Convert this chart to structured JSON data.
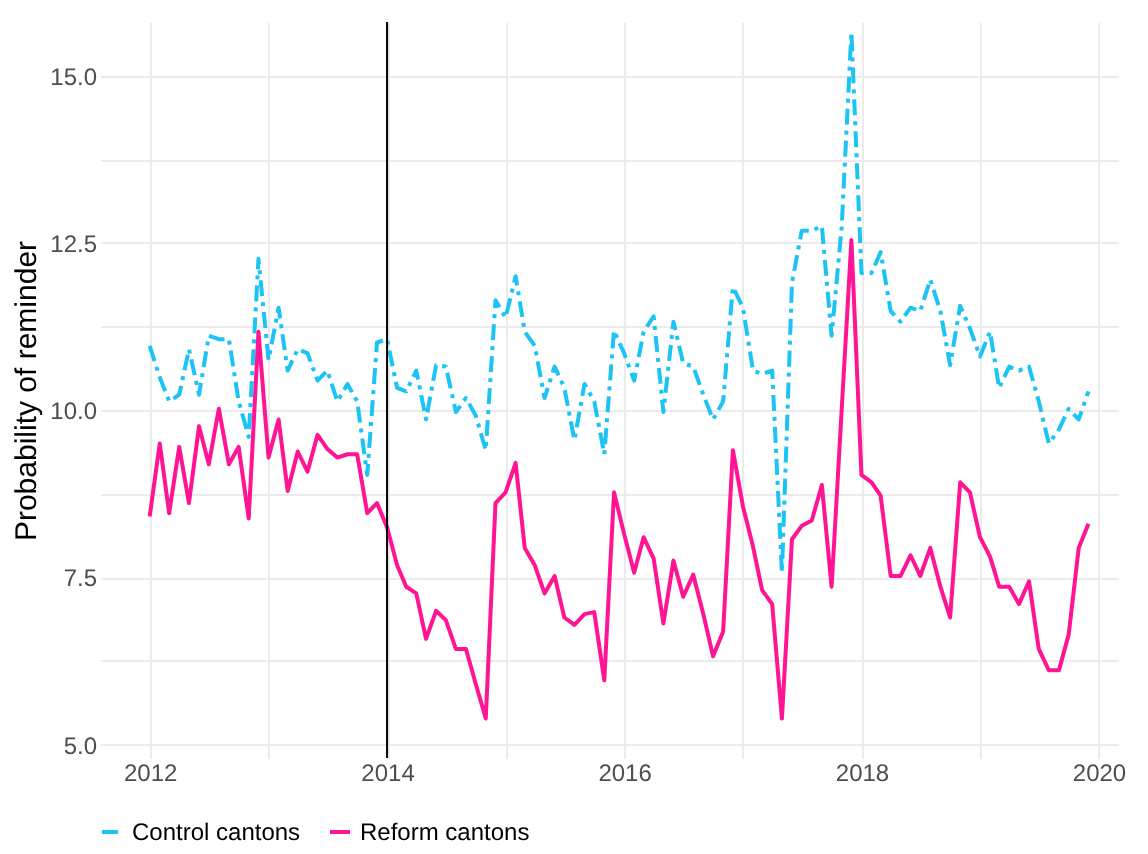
{
  "chart_data": {
    "type": "line",
    "ylabel": "Probability of reminder",
    "x": [
      "2012-01",
      "2012-02",
      "2012-03",
      "2012-04",
      "2012-05",
      "2012-06",
      "2012-07",
      "2012-08",
      "2012-09",
      "2012-10",
      "2012-11",
      "2012-12",
      "2013-01",
      "2013-02",
      "2013-03",
      "2013-04",
      "2013-05",
      "2013-06",
      "2013-07",
      "2013-08",
      "2013-09",
      "2013-10",
      "2013-11",
      "2013-12",
      "2014-01",
      "2014-02",
      "2014-03",
      "2014-04",
      "2014-05",
      "2014-06",
      "2014-07",
      "2014-08",
      "2014-09",
      "2014-10",
      "2014-11",
      "2014-12",
      "2015-01",
      "2015-02",
      "2015-03",
      "2015-04",
      "2015-05",
      "2015-06",
      "2015-07",
      "2015-08",
      "2015-09",
      "2015-10",
      "2015-11",
      "2015-12",
      "2016-01",
      "2016-02",
      "2016-03",
      "2016-04",
      "2016-05",
      "2016-06",
      "2016-07",
      "2016-08",
      "2016-09",
      "2016-10",
      "2016-11",
      "2016-12",
      "2017-01",
      "2017-02",
      "2017-03",
      "2017-04",
      "2017-05",
      "2017-06",
      "2017-07",
      "2017-08",
      "2017-09",
      "2017-10",
      "2017-11",
      "2017-12",
      "2018-01",
      "2018-02",
      "2018-03",
      "2018-04",
      "2018-05",
      "2018-06",
      "2018-07",
      "2018-08",
      "2018-09",
      "2018-10",
      "2018-11",
      "2018-12",
      "2019-01",
      "2019-02",
      "2019-03",
      "2019-04",
      "2019-05",
      "2019-06",
      "2019-07",
      "2019-08",
      "2019-09",
      "2019-10",
      "2019-11",
      "2019-12"
    ],
    "series": [
      {
        "name": "Control cantons",
        "color": "#1cc3f5",
        "line_style": "dashed",
        "values": [
          10.96,
          10.49,
          10.13,
          10.23,
          10.91,
          10.23,
          11.11,
          11.06,
          11.06,
          10.13,
          9.6,
          12.26,
          10.75,
          11.53,
          10.59,
          10.91,
          10.85,
          10.44,
          10.59,
          10.13,
          10.39,
          10.13,
          9.03,
          11.01,
          11.06,
          10.33,
          10.28,
          10.59,
          9.86,
          10.67,
          10.65,
          9.97,
          10.18,
          9.92,
          9.4,
          11.64,
          11.38,
          12.0,
          11.17,
          10.96,
          10.18,
          10.65,
          10.33,
          9.55,
          10.39,
          10.13,
          9.34,
          11.19,
          10.85,
          10.44,
          11.17,
          11.4,
          9.97,
          11.32,
          10.7,
          10.65,
          10.23,
          9.86,
          10.13,
          11.84,
          11.53,
          10.59,
          10.54,
          10.59,
          7.57,
          11.9,
          12.68,
          12.68,
          12.75,
          11.11,
          12.73,
          15.65,
          12.05,
          12.05,
          12.36,
          11.48,
          11.32,
          11.53,
          11.48,
          11.95,
          11.48,
          10.67,
          11.56,
          11.22,
          10.8,
          11.17,
          10.33,
          10.65,
          10.59,
          10.65,
          10.13,
          9.5,
          9.71,
          10.02,
          9.86,
          10.28
        ]
      },
      {
        "name": "Reform cantons",
        "color": "#ff1493",
        "line_style": "solid",
        "values": [
          8.41,
          9.5,
          8.46,
          9.45,
          8.61,
          9.76,
          9.19,
          10.02,
          9.19,
          9.45,
          8.38,
          11.17,
          9.29,
          9.86,
          8.79,
          9.38,
          9.08,
          9.63,
          9.42,
          9.29,
          9.34,
          9.34,
          8.46,
          8.61,
          8.25,
          7.68,
          7.36,
          7.26,
          6.58,
          7.0,
          6.86,
          6.43,
          6.43,
          5.91,
          5.39,
          8.61,
          8.77,
          9.21,
          7.94,
          7.68,
          7.26,
          7.52,
          6.9,
          6.79,
          6.95,
          6.98,
          5.96,
          8.77,
          8.15,
          7.57,
          8.1,
          7.78,
          6.81,
          7.75,
          7.21,
          7.54,
          6.95,
          6.32,
          6.69,
          9.4,
          8.56,
          7.96,
          7.31,
          7.1,
          5.39,
          8.07,
          8.27,
          8.35,
          8.88,
          7.36,
          10.0,
          12.54,
          9.03,
          8.92,
          8.72,
          7.52,
          7.52,
          7.83,
          7.52,
          7.94,
          7.36,
          6.9,
          8.92,
          8.77,
          8.1,
          7.81,
          7.36,
          7.36,
          7.1,
          7.44,
          6.43,
          6.11,
          6.11,
          6.64,
          7.94,
          8.3
        ]
      }
    ],
    "xlim": [
      "2011-08",
      "2020-03"
    ],
    "xticks": [
      {
        "value": "2012",
        "label": "2012"
      },
      {
        "value": "2013",
        "label": null
      },
      {
        "value": "2014",
        "label": "2014"
      },
      {
        "value": "2015",
        "label": null
      },
      {
        "value": "2016",
        "label": "2016"
      },
      {
        "value": "2017",
        "label": null
      },
      {
        "value": "2018",
        "label": "2018"
      },
      {
        "value": "2019",
        "label": null
      },
      {
        "value": "2020",
        "label": "2020"
      }
    ],
    "ylim": [
      4.8,
      15.8
    ],
    "yticks": [
      {
        "value": 5,
        "label": "5.0"
      },
      {
        "value": 6.25,
        "label": null
      },
      {
        "value": 7.5,
        "label": "7.5"
      },
      {
        "value": 8.75,
        "label": null
      },
      {
        "value": 10,
        "label": "10.0"
      },
      {
        "value": 11.25,
        "label": null
      },
      {
        "value": 12.5,
        "label": "12.5"
      },
      {
        "value": 13.75,
        "label": null
      },
      {
        "value": 15,
        "label": "15.0"
      }
    ],
    "ref_lines": [
      {
        "axis": "x",
        "value": "2014-01",
        "color": "#000000"
      }
    ],
    "grid": true,
    "legend": "bottom",
    "marker": "none"
  }
}
